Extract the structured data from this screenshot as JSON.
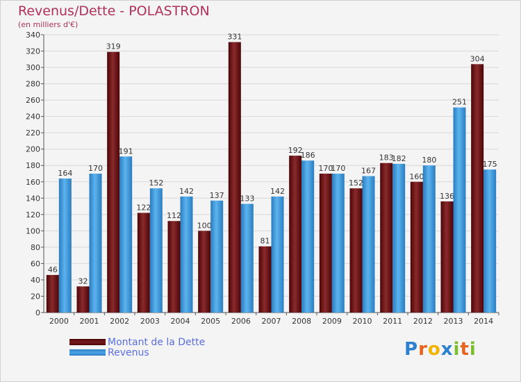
{
  "header": {
    "title": "Revenus/Dette - POLASTRON",
    "subtitle": "(en milliers d'€)"
  },
  "chart_data": {
    "type": "bar",
    "title": "Revenus/Dette - POLASTRON",
    "subtitle": "(en milliers d'€)",
    "categories": [
      "2000",
      "2001",
      "2002",
      "2003",
      "2004",
      "2005",
      "2006",
      "2007",
      "2008",
      "2009",
      "2010",
      "2011",
      "2012",
      "2013",
      "2014"
    ],
    "series": [
      {
        "name": "Montant de la Dette",
        "color": "#7a1a1d",
        "values": [
          46,
          32,
          319,
          122,
          112,
          100,
          331,
          81,
          192,
          170,
          152,
          183,
          160,
          136,
          304
        ]
      },
      {
        "name": "Revenus",
        "color": "#4aa3e4",
        "values": [
          164,
          170,
          191,
          152,
          142,
          137,
          133,
          142,
          186,
          170,
          167,
          182,
          180,
          251,
          175
        ]
      }
    ],
    "ylim": [
      0,
      340
    ],
    "yticks": [
      0,
      20,
      40,
      60,
      80,
      100,
      120,
      140,
      160,
      180,
      200,
      220,
      240,
      260,
      280,
      300,
      320,
      340
    ],
    "grid": true,
    "legend": "bottom-left",
    "data_labels": true
  },
  "legend": {
    "items": [
      {
        "label": "Montant de la Dette",
        "color": "#7a1a1d"
      },
      {
        "label": "Revenus",
        "color": "#4aa3e4"
      }
    ]
  },
  "logo": {
    "letters": [
      "P",
      "r",
      "o",
      "x",
      "i",
      "t",
      "i"
    ],
    "colors": [
      "#2d7fd0",
      "#e8641e",
      "#f0b400",
      "#2d7fd0",
      "#7bbd2a",
      "#e8641e",
      "#7bbd2a"
    ]
  }
}
